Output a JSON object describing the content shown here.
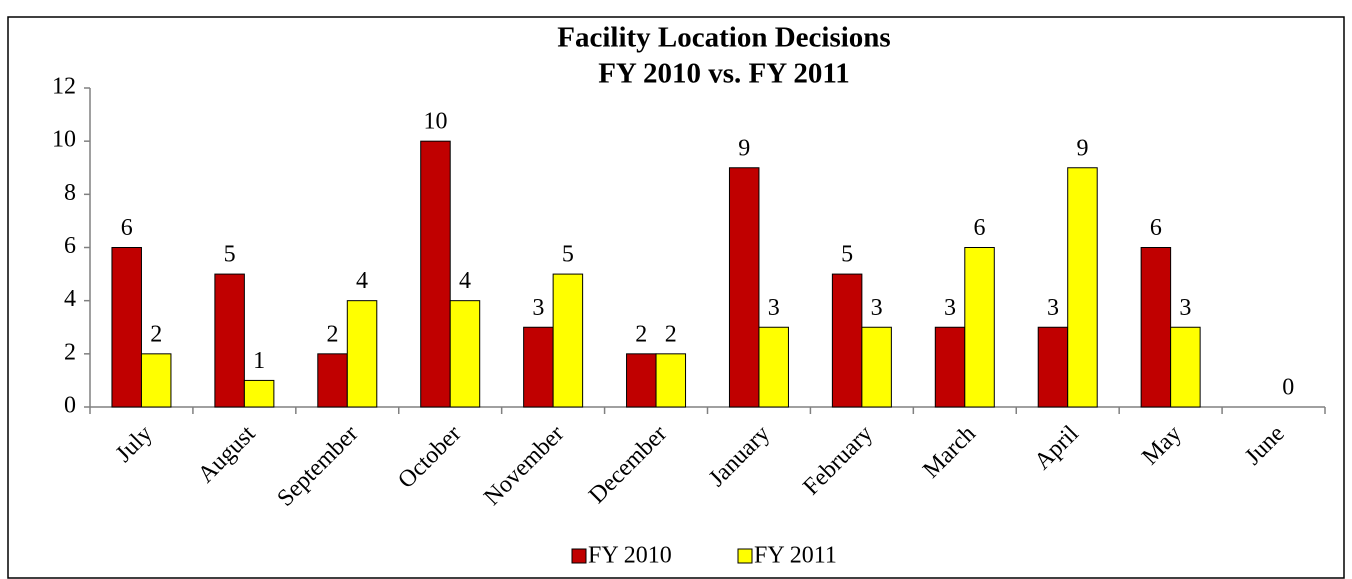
{
  "chart_data": {
    "type": "bar",
    "title": [
      "Facility Location Decisions",
      "FY 2010 vs. FY 2011"
    ],
    "categories": [
      "July",
      "August",
      "September",
      "October",
      "November",
      "December",
      "January",
      "February",
      "March",
      "April",
      "May",
      "June"
    ],
    "series": [
      {
        "name": "FY 2010",
        "color": "#c00000",
        "values": [
          6,
          5,
          2,
          10,
          3,
          2,
          9,
          5,
          3,
          3,
          6,
          null
        ]
      },
      {
        "name": "FY 2011",
        "color": "#ffff00",
        "values": [
          2,
          1,
          4,
          4,
          5,
          2,
          3,
          3,
          6,
          9,
          3,
          0
        ]
      }
    ],
    "ylim": [
      0,
      12
    ],
    "yticks": [
      0,
      2,
      4,
      6,
      8,
      10,
      12
    ],
    "grid": false,
    "legend": "bottom"
  }
}
